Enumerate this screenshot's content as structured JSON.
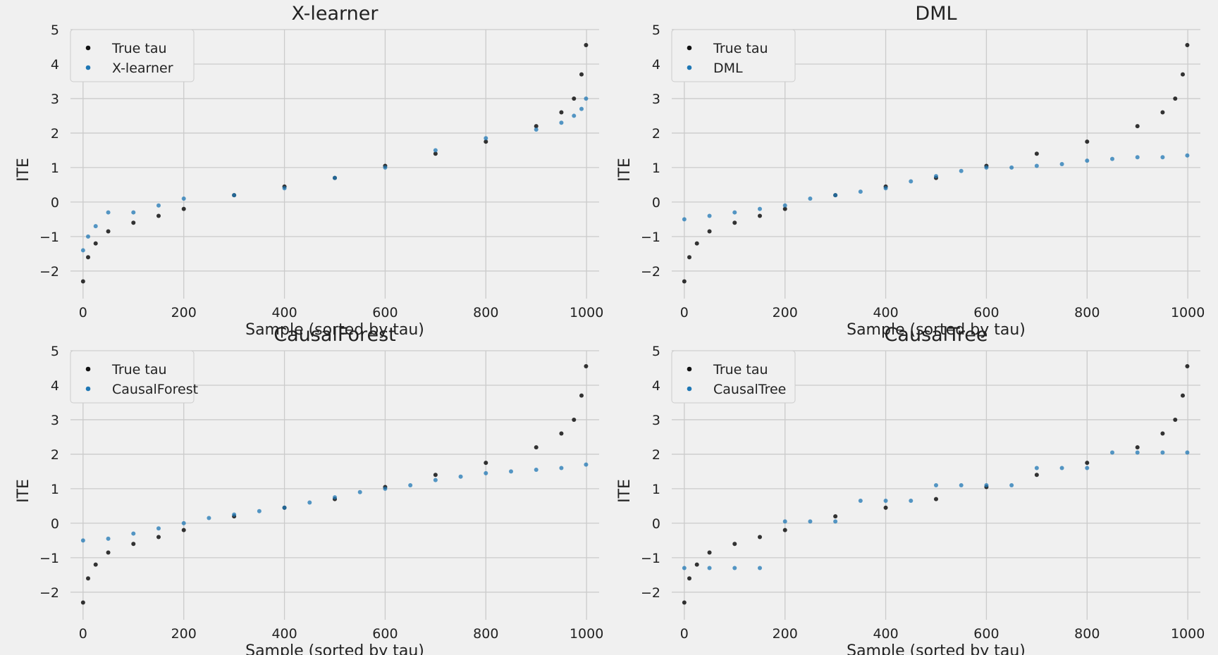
{
  "chart_data": [
    {
      "type": "scatter",
      "title": "X-learner",
      "xlabel": "Sample (sorted by tau)",
      "ylabel": "ITE",
      "xlim": [
        -25,
        1025
      ],
      "ylim": [
        -2.8,
        5
      ],
      "xticks": [
        0,
        200,
        400,
        600,
        800,
        1000
      ],
      "yticks": [
        -2,
        -1,
        0,
        1,
        2,
        3,
        4,
        5
      ],
      "grid": true,
      "legend": "top-left",
      "legend_entries": [
        "True tau",
        "X-learner"
      ],
      "series": [
        {
          "name": "True tau",
          "color": "#111111",
          "x": [
            0,
            10,
            25,
            50,
            100,
            150,
            200,
            300,
            400,
            500,
            600,
            700,
            800,
            900,
            950,
            975,
            990,
            999
          ],
          "y": [
            -2.3,
            -1.6,
            -1.2,
            -0.85,
            -0.6,
            -0.4,
            -0.2,
            0.2,
            0.45,
            0.7,
            1.05,
            1.4,
            1.75,
            2.2,
            2.6,
            3.0,
            3.7,
            4.55
          ]
        },
        {
          "name": "X-learner",
          "color": "#1f77b4",
          "x": [
            0,
            10,
            25,
            50,
            100,
            150,
            200,
            300,
            400,
            500,
            600,
            700,
            800,
            900,
            950,
            975,
            990,
            999
          ],
          "y": [
            -1.4,
            -1.0,
            -0.7,
            -0.3,
            -0.3,
            -0.1,
            0.1,
            0.2,
            0.4,
            0.7,
            1.0,
            1.5,
            1.85,
            2.1,
            2.3,
            2.5,
            2.7,
            3.0
          ]
        }
      ]
    },
    {
      "type": "scatter",
      "title": "DML",
      "xlabel": "Sample (sorted by tau)",
      "ylabel": "ITE",
      "xlim": [
        -25,
        1025
      ],
      "ylim": [
        -2.8,
        5
      ],
      "xticks": [
        0,
        200,
        400,
        600,
        800,
        1000
      ],
      "yticks": [
        -2,
        -1,
        0,
        1,
        2,
        3,
        4,
        5
      ],
      "grid": true,
      "legend": "top-left",
      "legend_entries": [
        "True tau",
        "DML"
      ],
      "series": [
        {
          "name": "True tau",
          "color": "#111111",
          "x": [
            0,
            10,
            25,
            50,
            100,
            150,
            200,
            300,
            400,
            500,
            600,
            700,
            800,
            900,
            950,
            975,
            990,
            999
          ],
          "y": [
            -2.3,
            -1.6,
            -1.2,
            -0.85,
            -0.6,
            -0.4,
            -0.2,
            0.2,
            0.45,
            0.7,
            1.05,
            1.4,
            1.75,
            2.2,
            2.6,
            3.0,
            3.7,
            4.55
          ]
        },
        {
          "name": "DML",
          "color": "#1f77b4",
          "x": [
            0,
            50,
            100,
            150,
            200,
            250,
            300,
            350,
            400,
            450,
            500,
            550,
            600,
            650,
            700,
            750,
            800,
            850,
            900,
            950,
            999
          ],
          "y": [
            -0.5,
            -0.4,
            -0.3,
            -0.2,
            -0.1,
            0.1,
            0.2,
            0.3,
            0.4,
            0.6,
            0.75,
            0.9,
            1.0,
            1.0,
            1.05,
            1.1,
            1.2,
            1.25,
            1.3,
            1.3,
            1.35
          ]
        }
      ]
    },
    {
      "type": "scatter",
      "title": "CausalForest",
      "xlabel": "Sample (sorted by tau)",
      "ylabel": "ITE",
      "xlim": [
        -25,
        1025
      ],
      "ylim": [
        -2.8,
        5
      ],
      "xticks": [
        0,
        200,
        400,
        600,
        800,
        1000
      ],
      "yticks": [
        -2,
        -1,
        0,
        1,
        2,
        3,
        4,
        5
      ],
      "grid": true,
      "legend": "top-left",
      "legend_entries": [
        "True tau",
        "CausalForest"
      ],
      "series": [
        {
          "name": "True tau",
          "color": "#111111",
          "x": [
            0,
            10,
            25,
            50,
            100,
            150,
            200,
            300,
            400,
            500,
            600,
            700,
            800,
            900,
            950,
            975,
            990,
            999
          ],
          "y": [
            -2.3,
            -1.6,
            -1.2,
            -0.85,
            -0.6,
            -0.4,
            -0.2,
            0.2,
            0.45,
            0.7,
            1.05,
            1.4,
            1.75,
            2.2,
            2.6,
            3.0,
            3.7,
            4.55
          ]
        },
        {
          "name": "CausalForest",
          "color": "#1f77b4",
          "x": [
            0,
            50,
            100,
            150,
            200,
            250,
            300,
            350,
            400,
            450,
            500,
            550,
            600,
            650,
            700,
            750,
            800,
            850,
            900,
            950,
            999
          ],
          "y": [
            -0.5,
            -0.45,
            -0.3,
            -0.15,
            0.0,
            0.15,
            0.25,
            0.35,
            0.45,
            0.6,
            0.75,
            0.9,
            1.0,
            1.1,
            1.25,
            1.35,
            1.45,
            1.5,
            1.55,
            1.6,
            1.7
          ]
        }
      ]
    },
    {
      "type": "scatter",
      "title": "CausalTree",
      "xlabel": "Sample (sorted by tau)",
      "ylabel": "ITE",
      "xlim": [
        -25,
        1025
      ],
      "ylim": [
        -2.8,
        5
      ],
      "xticks": [
        0,
        200,
        400,
        600,
        800,
        1000
      ],
      "yticks": [
        -2,
        -1,
        0,
        1,
        2,
        3,
        4,
        5
      ],
      "grid": true,
      "legend": "top-left",
      "legend_entries": [
        "True tau",
        "CausalTree"
      ],
      "series": [
        {
          "name": "True tau",
          "color": "#111111",
          "x": [
            0,
            10,
            25,
            50,
            100,
            150,
            200,
            300,
            400,
            500,
            600,
            700,
            800,
            900,
            950,
            975,
            990,
            999
          ],
          "y": [
            -2.3,
            -1.6,
            -1.2,
            -0.85,
            -0.6,
            -0.4,
            -0.2,
            0.2,
            0.45,
            0.7,
            1.05,
            1.4,
            1.75,
            2.2,
            2.6,
            3.0,
            3.7,
            4.55
          ]
        },
        {
          "name": "CausalTree",
          "color": "#1f77b4",
          "x": [
            0,
            50,
            100,
            150,
            200,
            250,
            300,
            350,
            400,
            450,
            500,
            550,
            600,
            650,
            700,
            750,
            800,
            850,
            900,
            950,
            999
          ],
          "y": [
            -1.3,
            -1.3,
            -1.3,
            -1.3,
            0.05,
            0.05,
            0.05,
            0.65,
            0.65,
            0.65,
            1.1,
            1.1,
            1.1,
            1.1,
            1.6,
            1.6,
            1.6,
            2.05,
            2.05,
            2.05,
            2.05
          ]
        }
      ]
    }
  ]
}
